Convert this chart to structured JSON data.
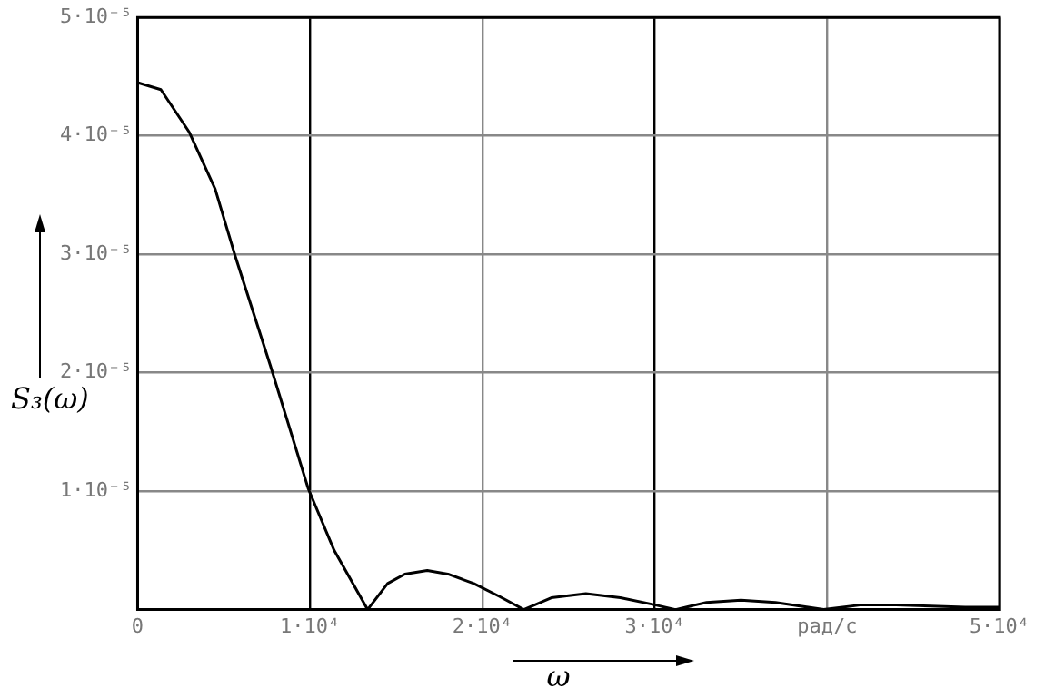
{
  "chart_data": {
    "type": "line",
    "xlabel": "ω",
    "ylabel": "S₃(ω)",
    "x": [
      0,
      1350,
      3000,
      4500,
      5650,
      7700,
      9900,
      11400,
      13340,
      14500,
      15500,
      16800,
      18000,
      19500,
      21000,
      22400,
      24000,
      26000,
      28000,
      30000,
      31200,
      33000,
      35000,
      37000,
      39800,
      42000,
      44000,
      46000,
      48000,
      50000
    ],
    "series": [
      {
        "color": "#000000",
        "values": [
          4.45e-05,
          4.39e-05,
          4.03e-05,
          3.55e-05,
          2.99e-05,
          2.06e-05,
          1.02e-05,
          5e-06,
          0,
          2.2e-06,
          3e-06,
          3.3e-06,
          3e-06,
          2.2e-06,
          1.1e-06,
          0,
          1e-06,
          1.35e-06,
          1e-06,
          4e-07,
          0,
          6e-07,
          8e-07,
          6e-07,
          0,
          4e-07,
          4e-07,
          3e-07,
          2e-07,
          2e-07
        ]
      }
    ],
    "xlim": [
      0,
      50000
    ],
    "ylim": [
      0,
      5e-05
    ],
    "xticks": [
      0,
      {
        "value": 10000,
        "label": "1·10⁴"
      },
      {
        "value": 20000,
        "label": "2·10⁴"
      },
      {
        "value": 30000,
        "label": "3·10⁴"
      },
      {
        "value": 40000,
        "label": "рад/с"
      },
      {
        "value": 50000,
        "label": "5·10⁴"
      }
    ],
    "yticks": [
      {
        "value": 0,
        "label": null
      },
      {
        "value": 1e-05,
        "label": "1·10⁻⁵"
      },
      {
        "value": 2e-05,
        "label": "2·10⁻⁵"
      },
      {
        "value": 3e-05,
        "label": "3·10⁻⁵"
      },
      {
        "value": 4e-05,
        "label": "4·10⁻⁵"
      },
      {
        "value": 5e-05,
        "label": "5·10⁻⁵"
      }
    ],
    "grid": true,
    "legend": false,
    "marker": "none",
    "line_style": "solid"
  }
}
